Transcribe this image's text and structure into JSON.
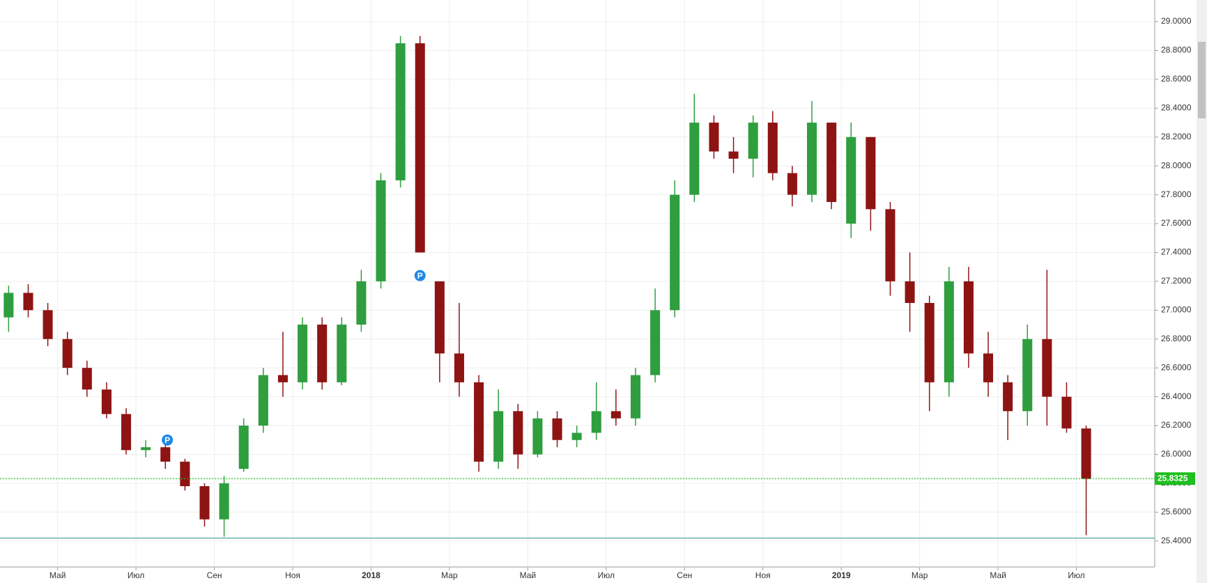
{
  "chart_data": {
    "type": "candlestick",
    "x": [
      2.75,
      3.25,
      3.75,
      4.25,
      4.75,
      5.25,
      5.75,
      6.25,
      6.75,
      7.25,
      7.75,
      8.25,
      8.75,
      9.25,
      9.75,
      10.25,
      10.75,
      11.25,
      11.75,
      12.25,
      12.75,
      13.25,
      13.75,
      14.25,
      14.75,
      15.25,
      15.75,
      16.25,
      16.75,
      17.25,
      17.75,
      18.25,
      18.75,
      19.25,
      19.75,
      20.25,
      20.75,
      21.25,
      21.75,
      22.25,
      22.75,
      23.25,
      23.75,
      24.25,
      24.75,
      25.25,
      25.75,
      26.25,
      26.75,
      27.25,
      27.75,
      28.25,
      28.75,
      29.25,
      29.75,
      30.25
    ],
    "open": [
      26.95,
      27.12,
      27.0,
      26.8,
      26.6,
      26.45,
      26.28,
      26.03,
      26.05,
      25.95,
      25.78,
      25.55,
      25.9,
      26.2,
      26.55,
      26.5,
      26.9,
      26.5,
      26.9,
      27.2,
      27.9,
      28.85,
      27.2,
      26.7,
      26.5,
      25.95,
      26.3,
      26.0,
      26.25,
      26.1,
      26.15,
      26.3,
      26.25,
      26.55,
      27.0,
      27.8,
      28.3,
      28.1,
      28.05,
      28.3,
      27.95,
      27.8,
      28.3,
      27.6,
      28.2,
      27.7,
      27.2,
      27.05,
      26.5,
      27.2,
      26.7,
      26.5,
      26.3,
      26.8,
      26.4,
      26.18
    ],
    "high": [
      27.17,
      27.18,
      27.05,
      26.85,
      26.65,
      26.5,
      26.32,
      26.1,
      26.1,
      25.97,
      25.8,
      25.85,
      26.25,
      26.6,
      26.85,
      26.95,
      26.95,
      26.95,
      27.28,
      27.95,
      28.9,
      28.9,
      27.2,
      27.05,
      26.55,
      26.45,
      26.35,
      26.3,
      26.3,
      26.2,
      26.5,
      26.45,
      26.6,
      27.15,
      27.9,
      28.5,
      28.35,
      28.2,
      28.35,
      28.38,
      28.0,
      28.45,
      28.3,
      28.3,
      28.2,
      27.75,
      27.4,
      27.1,
      27.3,
      27.3,
      26.85,
      26.55,
      26.9,
      27.28,
      26.5,
      26.2
    ],
    "low": [
      26.85,
      26.95,
      26.75,
      26.55,
      26.4,
      26.25,
      26.0,
      25.98,
      25.9,
      25.75,
      25.5,
      25.43,
      25.88,
      26.15,
      26.4,
      26.45,
      26.45,
      26.48,
      26.85,
      27.15,
      27.85,
      27.4,
      26.5,
      26.4,
      25.88,
      25.9,
      25.9,
      25.98,
      26.05,
      26.05,
      26.1,
      26.2,
      26.2,
      26.5,
      26.95,
      27.75,
      28.05,
      27.95,
      27.92,
      27.9,
      27.72,
      27.75,
      27.7,
      27.5,
      27.55,
      27.1,
      26.85,
      26.3,
      26.4,
      26.6,
      26.4,
      26.1,
      26.2,
      26.2,
      26.15,
      25.44
    ],
    "close": [
      27.12,
      27.0,
      26.8,
      26.6,
      26.45,
      26.28,
      26.03,
      26.05,
      25.95,
      25.78,
      25.55,
      25.8,
      26.2,
      26.55,
      26.5,
      26.9,
      26.5,
      26.9,
      27.2,
      27.9,
      28.85,
      27.4,
      26.7,
      26.5,
      25.95,
      26.3,
      26.0,
      26.25,
      26.1,
      26.15,
      26.3,
      26.25,
      26.55,
      27.0,
      27.8,
      28.3,
      28.1,
      28.05,
      28.3,
      27.95,
      27.8,
      28.3,
      27.75,
      28.2,
      27.7,
      27.2,
      27.05,
      26.5,
      27.2,
      26.7,
      26.5,
      26.3,
      26.8,
      26.4,
      26.18,
      25.83
    ],
    "up_color": "#2e9e3e",
    "down_color": "#8e1414",
    "xlim": [
      2.53,
      32.0
    ],
    "xticks": [
      {
        "value": 4,
        "label": "Май"
      },
      {
        "value": 6,
        "label": "Июл"
      },
      {
        "value": 8,
        "label": "Сен"
      },
      {
        "value": 10,
        "label": "Ноя"
      },
      {
        "value": 12,
        "label": "2018",
        "bold": true
      },
      {
        "value": 14,
        "label": "Мар"
      },
      {
        "value": 16,
        "label": "Май"
      },
      {
        "value": 18,
        "label": "Июл"
      },
      {
        "value": 20,
        "label": "Сен"
      },
      {
        "value": 22,
        "label": "Ноя"
      },
      {
        "value": 24,
        "label": "2019",
        "bold": true
      },
      {
        "value": 26,
        "label": "Мар"
      },
      {
        "value": 28,
        "label": "Май"
      },
      {
        "value": 30,
        "label": "Июл"
      }
    ],
    "ylim": [
      25.22,
      29.15
    ],
    "yticks": [
      {
        "value": 25.4,
        "label": "25.4000"
      },
      {
        "value": 25.6,
        "label": "25.6000"
      },
      {
        "value": 25.8,
        "label": "25.8000"
      },
      {
        "value": 26.0,
        "label": "26.0000"
      },
      {
        "value": 26.2,
        "label": "26.2000"
      },
      {
        "value": 26.4,
        "label": "26.4000"
      },
      {
        "value": 26.6,
        "label": "26.6000"
      },
      {
        "value": 26.8,
        "label": "26.8000"
      },
      {
        "value": 27.0,
        "label": "27.0000"
      },
      {
        "value": 27.2,
        "label": "27.2000"
      },
      {
        "value": 27.4,
        "label": "27.4000"
      },
      {
        "value": 27.6,
        "label": "27.6000"
      },
      {
        "value": 27.8,
        "label": "27.8000"
      },
      {
        "value": 28.0,
        "label": "28.0000"
      },
      {
        "value": 28.2,
        "label": "28.2000"
      },
      {
        "value": 28.4,
        "label": "28.4000"
      },
      {
        "value": 28.6,
        "label": "28.6000"
      },
      {
        "value": 28.8,
        "label": "28.8000"
      },
      {
        "value": 29.0,
        "label": "29.0000"
      }
    ],
    "grid": true,
    "price_lines": [
      {
        "value": 25.8325,
        "label": "25.8325",
        "color": "#1fbf1f"
      },
      {
        "value": 25.42,
        "color": "#5aa9a9"
      }
    ],
    "markers": [
      {
        "x": 6.8,
        "y": 26.1,
        "label": "P"
      },
      {
        "x": 13.25,
        "y": 27.24,
        "label": "P"
      }
    ]
  }
}
